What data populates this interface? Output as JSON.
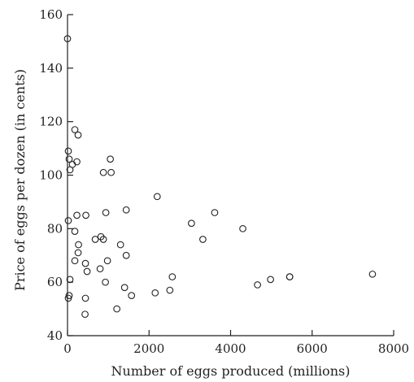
{
  "chart_data": {
    "type": "scatter",
    "title": "",
    "xlabel": "Number of eggs produced (millions)",
    "ylabel": "Price of eggs per dozen (in cents)",
    "xlim": [
      0,
      8000
    ],
    "ylim": [
      40,
      160
    ],
    "x_ticks": [
      0,
      2000,
      4000,
      6000,
      8000
    ],
    "y_ticks": [
      40,
      60,
      80,
      100,
      120,
      140,
      160
    ],
    "x_tick_labels": [
      "0",
      "2000",
      "4000",
      "6000",
      "8000"
    ],
    "y_tick_labels": [
      "40",
      "60",
      "80",
      "100",
      "120",
      "140",
      "160"
    ],
    "grid": false,
    "legend": "none",
    "series": [
      {
        "points": [
          [
            0,
            151
          ],
          [
            180,
            117
          ],
          [
            260,
            115
          ],
          [
            20,
            109
          ],
          [
            40,
            106
          ],
          [
            120,
            104
          ],
          [
            230,
            105
          ],
          [
            60,
            102
          ],
          [
            880,
            101
          ],
          [
            1050,
            106
          ],
          [
            1070,
            101
          ],
          [
            2200,
            92
          ],
          [
            940,
            86
          ],
          [
            1440,
            87
          ],
          [
            3040,
            82
          ],
          [
            3610,
            86
          ],
          [
            20,
            83
          ],
          [
            230,
            85
          ],
          [
            450,
            85
          ],
          [
            4300,
            80
          ],
          [
            3320,
            76
          ],
          [
            180,
            79
          ],
          [
            820,
            77
          ],
          [
            880,
            76
          ],
          [
            680,
            76
          ],
          [
            270,
            74
          ],
          [
            1300,
            74
          ],
          [
            260,
            71
          ],
          [
            1440,
            70
          ],
          [
            180,
            68
          ],
          [
            440,
            67
          ],
          [
            980,
            68
          ],
          [
            480,
            64
          ],
          [
            800,
            65
          ],
          [
            60,
            61
          ],
          [
            930,
            60
          ],
          [
            2570,
            62
          ],
          [
            4660,
            59
          ],
          [
            4980,
            61
          ],
          [
            5450,
            62
          ],
          [
            5450,
            62
          ],
          [
            7480,
            63
          ],
          [
            1400,
            58
          ],
          [
            2150,
            56
          ],
          [
            2510,
            57
          ],
          [
            1570,
            55
          ],
          [
            40,
            55
          ],
          [
            20,
            54
          ],
          [
            440,
            54
          ],
          [
            1210,
            50
          ],
          [
            430,
            48
          ]
        ]
      }
    ]
  }
}
